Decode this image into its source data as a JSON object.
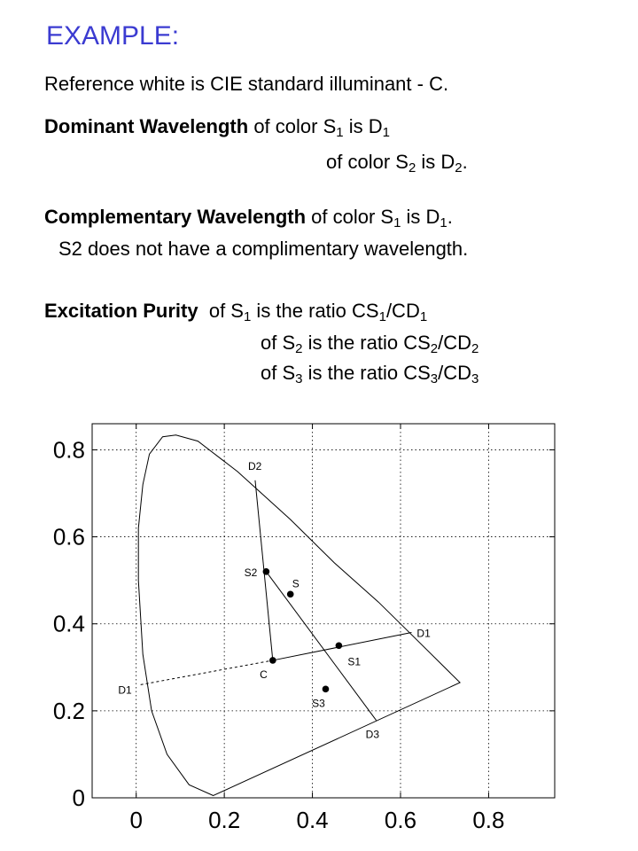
{
  "title": "EXAMPLE:",
  "reference_line": "Reference white is CIE standard illuminant - C.",
  "dominant": {
    "heading": "Dominant Wavelength",
    "line1": {
      "a": " of color S",
      "sub1": "1",
      "b": " is D",
      "sub2": "1",
      "c": ""
    },
    "line2": {
      "a": "of color S",
      "sub1": "2",
      "b": " is D",
      "sub2": "2",
      "c": "."
    }
  },
  "complementary": {
    "heading": "Complementary Wavelength",
    "line1": {
      "a": " of color S",
      "sub1": "1",
      "b": " is D",
      "sub2": "1",
      "c": "."
    },
    "line2": "S2 does not have a complimentary wavelength."
  },
  "purity": {
    "heading": "Excitation Purity",
    "lines": [
      {
        "a": "of S",
        "s1": "1",
        "b": " is the ratio  CS",
        "s2": "1",
        "c": "/CD",
        "s3": "1"
      },
      {
        "a": "of S",
        "s1": "2",
        "b": " is the ratio  CS",
        "s2": "2",
        "c": "/CD",
        "s3": "2"
      },
      {
        "a": "of S",
        "s1": "3",
        "b": " is the ratio  CS",
        "s2": "3",
        "c": "/CD",
        "s3": "3"
      }
    ]
  },
  "chart_data": {
    "type": "line",
    "xlim": [
      -0.1,
      0.95
    ],
    "ylim": [
      0,
      0.86
    ],
    "x_ticks": [
      "0",
      "0.2",
      "0.4",
      "0.6",
      "0.8"
    ],
    "y_ticks": [
      "0",
      "0.2",
      "0.4",
      "0.6",
      "0.8"
    ],
    "x_tick_values": [
      0,
      0.2,
      0.4,
      0.6,
      0.8
    ],
    "y_tick_values": [
      0,
      0.2,
      0.4,
      0.6,
      0.8
    ],
    "grid": true,
    "locus": [
      [
        0.175,
        0.005
      ],
      [
        0.12,
        0.03
      ],
      [
        0.07,
        0.1
      ],
      [
        0.035,
        0.2
      ],
      [
        0.015,
        0.33
      ],
      [
        0.005,
        0.5
      ],
      [
        0.005,
        0.62
      ],
      [
        0.015,
        0.72
      ],
      [
        0.03,
        0.79
      ],
      [
        0.06,
        0.83
      ],
      [
        0.09,
        0.834
      ],
      [
        0.14,
        0.82
      ],
      [
        0.23,
        0.75
      ],
      [
        0.35,
        0.64
      ],
      [
        0.45,
        0.54
      ],
      [
        0.55,
        0.45
      ],
      [
        0.64,
        0.36
      ],
      [
        0.735,
        0.265
      ]
    ],
    "points": [
      {
        "label": "C",
        "x": 0.31,
        "y": 0.316,
        "marker": true
      },
      {
        "label": "S1",
        "x": 0.46,
        "y": 0.35,
        "marker": true
      },
      {
        "label": "S2",
        "x": 0.295,
        "y": 0.52,
        "marker": true
      },
      {
        "label": "S",
        "x": 0.35,
        "y": 0.468,
        "marker": true
      },
      {
        "label": "S3",
        "x": 0.43,
        "y": 0.25,
        "marker": true
      },
      {
        "label": "D1",
        "x": 0.625,
        "y": 0.38,
        "marker": false
      },
      {
        "label": "D2",
        "x": 0.27,
        "y": 0.73,
        "marker": false
      },
      {
        "label": "D3",
        "x": 0.545,
        "y": 0.178,
        "marker": false
      },
      {
        "label": "D1",
        "x": 0.01,
        "y": 0.26,
        "marker": false
      }
    ]
  }
}
